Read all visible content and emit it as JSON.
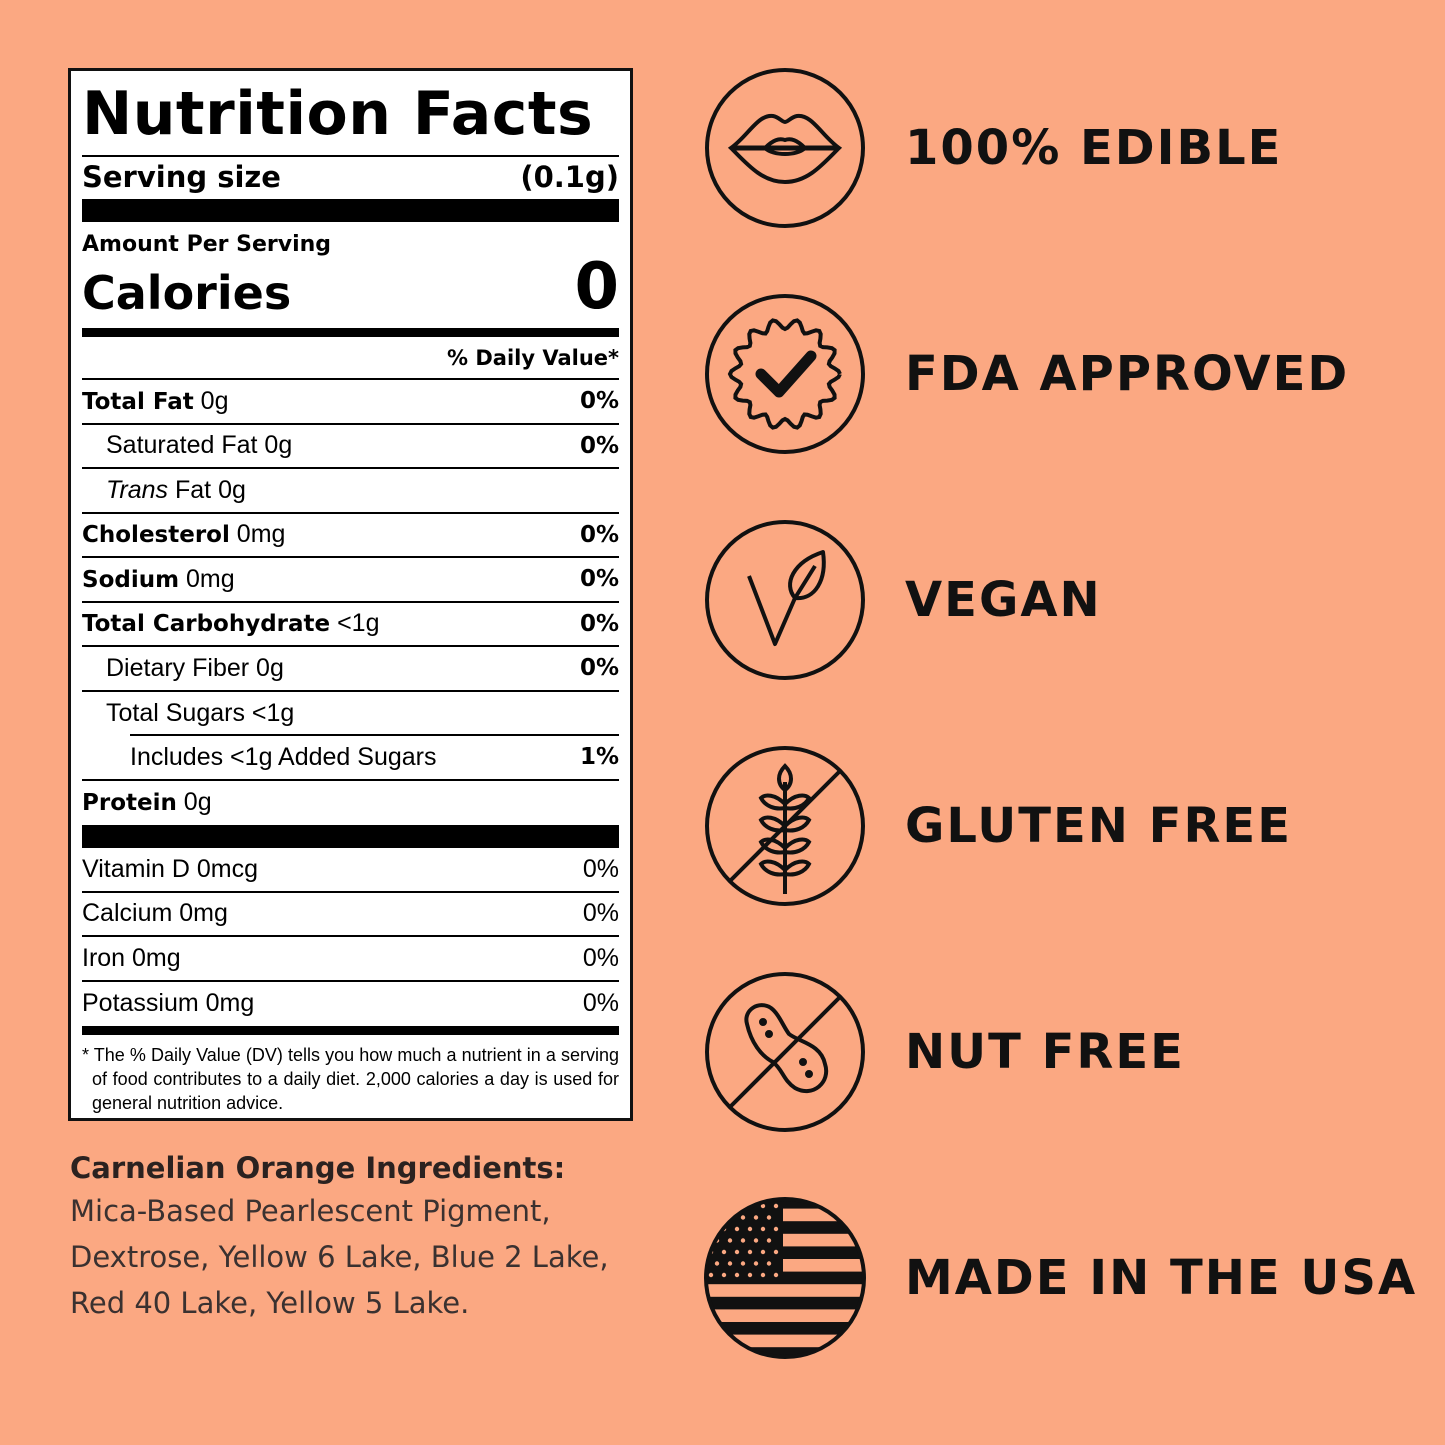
{
  "nutrition": {
    "title": "Nutrition Facts",
    "serving_label": "Serving size",
    "serving_value": "(0.1g)",
    "amount_per_serving": "Amount Per Serving",
    "calories_label": "Calories",
    "calories_value": "0",
    "daily_value_header": "% Daily Value*",
    "rows": [
      {
        "bold": "Total Fat",
        "name": " 0g",
        "pct": "0%"
      },
      {
        "bold": "",
        "name": "Saturated Fat 0g",
        "pct": "0%"
      },
      {
        "italic": "Trans",
        "name": " Fat 0g",
        "pct": ""
      },
      {
        "bold": "Cholesterol",
        "name": " 0mg",
        "pct": "0%"
      },
      {
        "bold": "Sodium",
        "name": " 0mg",
        "pct": "0%"
      },
      {
        "bold": "Total Carbohydrate",
        "name": " <1g",
        "pct": "0%"
      },
      {
        "bold": "",
        "name": "Dietary Fiber 0g",
        "pct": "0%"
      },
      {
        "bold": "",
        "name": "Total Sugars <1g",
        "pct": ""
      },
      {
        "bold": "",
        "name": "Includes <1g Added Sugars",
        "pct": "1%"
      },
      {
        "bold": "Protein",
        "name": " 0g",
        "pct": ""
      }
    ],
    "vitamins": [
      {
        "name": "Vitamin D 0mcg",
        "pct": "0%"
      },
      {
        "name": "Calcium 0mg",
        "pct": "0%"
      },
      {
        "name": "Iron 0mg",
        "pct": "0%"
      },
      {
        "name": "Potassium 0mg",
        "pct": "0%"
      }
    ],
    "footnote": "* The % Daily Value (DV) tells you how much a nutrient in a serving of food contributes to a daily diet. 2,000 calories a day is used for general nutrition advice."
  },
  "ingredients": {
    "heading": "Carnelian Orange Ingredients:",
    "lines": [
      "Mica-Based Pearlescent Pigment,",
      "Dextrose, Yellow 6 Lake, Blue 2 Lake,",
      "Red 40 Lake, Yellow 5 Lake."
    ]
  },
  "claims": [
    {
      "label": "100% EDIBLE",
      "icon": "lips-icon"
    },
    {
      "label": "FDA APPROVED",
      "icon": "badge-check-icon"
    },
    {
      "label": "VEGAN",
      "icon": "leaf-icon"
    },
    {
      "label": "GLUTEN FREE",
      "icon": "wheat-crossed-icon"
    },
    {
      "label": "NUT FREE",
      "icon": "peanut-crossed-icon"
    },
    {
      "label": "MADE IN THE USA",
      "icon": "us-flag-icon"
    }
  ],
  "colors": {
    "background": "#fba882",
    "ink": "#111111"
  }
}
